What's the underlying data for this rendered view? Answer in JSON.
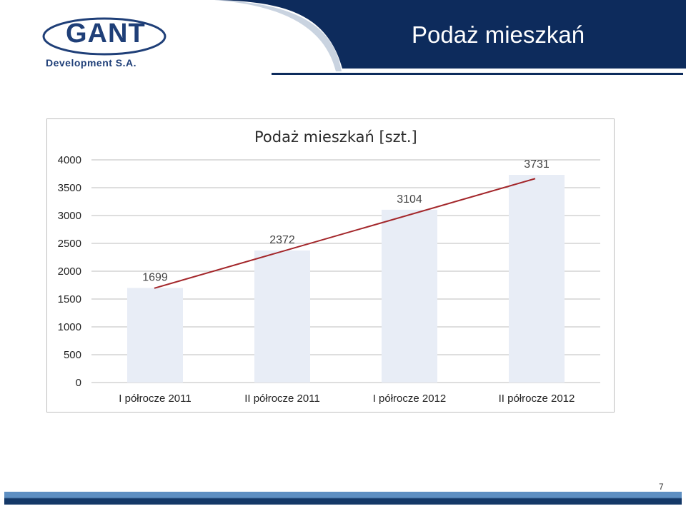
{
  "header": {
    "title": "Podaż mieszkań",
    "logo_wordmark": "GANT",
    "logo_tagline": "Development S.A.",
    "colors": {
      "navy": "#0d2b5c",
      "logo_blue": "#1f3f78"
    }
  },
  "chart_data": {
    "type": "bar",
    "title": "Podaż mieszkań [szt.]",
    "categories": [
      "I półrocze 2011",
      "II półrocze 2011",
      "I półrocze 2012",
      "II półrocze 2012"
    ],
    "values": [
      1699,
      2372,
      3104,
      3731
    ],
    "data_labels": [
      "1699",
      "2372",
      "3104",
      "3731"
    ],
    "ylim": [
      0,
      4000
    ],
    "yticks": [
      0,
      500,
      1000,
      1500,
      2000,
      2500,
      3000,
      3500,
      4000
    ],
    "grid": true,
    "legend": "none",
    "trendline": true,
    "bar_color": "#e8edf6",
    "trendline_color": "#a3262a"
  },
  "footer": {
    "page_number": "7"
  }
}
